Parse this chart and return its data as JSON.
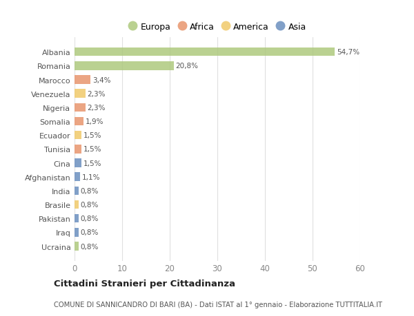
{
  "countries": [
    "Albania",
    "Romania",
    "Marocco",
    "Venezuela",
    "Nigeria",
    "Somalia",
    "Ecuador",
    "Tunisia",
    "Cina",
    "Afghanistan",
    "India",
    "Brasile",
    "Pakistan",
    "Iraq",
    "Ucraina"
  ],
  "values": [
    54.7,
    20.8,
    3.4,
    2.3,
    2.3,
    1.9,
    1.5,
    1.5,
    1.5,
    1.1,
    0.8,
    0.8,
    0.8,
    0.8,
    0.8
  ],
  "labels": [
    "54,7%",
    "20,8%",
    "3,4%",
    "2,3%",
    "2,3%",
    "1,9%",
    "1,5%",
    "1,5%",
    "1,5%",
    "1,1%",
    "0,8%",
    "0,8%",
    "0,8%",
    "0,8%",
    "0,8%"
  ],
  "colors": [
    "#aec97e",
    "#aec97e",
    "#e8956d",
    "#f0c96a",
    "#e8956d",
    "#e8956d",
    "#f0c96a",
    "#e8956d",
    "#6b8fbf",
    "#6b8fbf",
    "#6b8fbf",
    "#f0c96a",
    "#6b8fbf",
    "#6b8fbf",
    "#aec97e"
  ],
  "legend_labels": [
    "Europa",
    "Africa",
    "America",
    "Asia"
  ],
  "legend_colors": [
    "#aec97e",
    "#e8956d",
    "#f0c96a",
    "#6b8fbf"
  ],
  "title": "Cittadini Stranieri per Cittadinanza",
  "subtitle": "COMUNE DI SANNICANDRO DI BARI (BA) - Dati ISTAT al 1° gennaio - Elaborazione TUTTITALIA.IT",
  "xlim": [
    0,
    60
  ],
  "xticks": [
    0,
    10,
    20,
    30,
    40,
    50,
    60
  ],
  "bg_color": "#ffffff",
  "grid_color": "#e0e0e0"
}
